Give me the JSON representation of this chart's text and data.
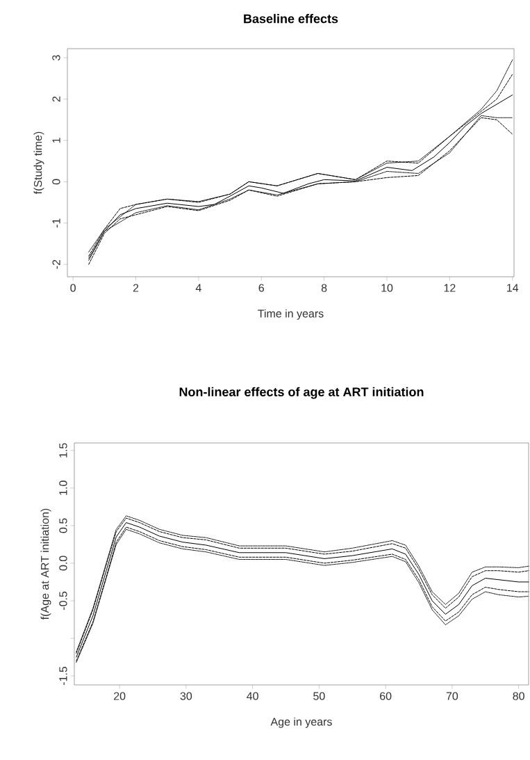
{
  "chart_data": [
    {
      "type": "line",
      "title": "Baseline effects",
      "xlabel": "Time in years",
      "ylabel": "f(Study time)",
      "xlim": [
        -0.18,
        14.05
      ],
      "ylim": [
        -2.3,
        3.22
      ],
      "xticks": [
        0,
        2,
        4,
        6,
        8,
        10,
        12,
        14
      ],
      "yticks": [
        -2,
        -1,
        0,
        1,
        2,
        3
      ],
      "marker": "none",
      "series": [
        {
          "color": "#000000",
          "line_style": "solid",
          "x": [
            0.5,
            1,
            1.5,
            2,
            3,
            4,
            4.5,
            5,
            5.6,
            6,
            6.7,
            7.5,
            8,
            9,
            10,
            10.8,
            11.5,
            12,
            12.5,
            13,
            14
          ],
          "values": [
            -1.9,
            -1.2,
            -0.8,
            -0.65,
            -0.52,
            -0.6,
            -0.55,
            -0.35,
            -0.1,
            -0.15,
            -0.28,
            -0.05,
            0.05,
            0.02,
            0.35,
            0.27,
            0.6,
            0.95,
            1.35,
            1.65,
            2.1
          ]
        },
        {
          "color": "#000000",
          "line_style": "dashed",
          "x": [
            0.5,
            1,
            1.5,
            2,
            3,
            4,
            5,
            5.6,
            6.5,
            7.8,
            9,
            10,
            11,
            12,
            13,
            13.5,
            14
          ],
          "values": [
            -1.8,
            -1.15,
            -0.65,
            -0.55,
            -0.42,
            -0.5,
            -0.3,
            0.0,
            -0.1,
            0.2,
            0.05,
            0.5,
            0.45,
            1.1,
            1.7,
            2.0,
            2.6
          ]
        },
        {
          "color": "#000000",
          "line_style": "dashed",
          "x": [
            0.5,
            1,
            1.5,
            2,
            3,
            4,
            5,
            5.6,
            6.5,
            7.8,
            9,
            10,
            11,
            12,
            13,
            13.5,
            14
          ],
          "values": [
            -2.0,
            -1.25,
            -0.9,
            -0.8,
            -0.6,
            -0.7,
            -0.45,
            -0.2,
            -0.35,
            -0.05,
            0.0,
            0.1,
            0.15,
            0.75,
            1.55,
            1.5,
            1.15
          ]
        },
        {
          "color": "#000000",
          "line_style": "dotted",
          "x": [
            0.5,
            1,
            2,
            3,
            4,
            5,
            5.6,
            6.5,
            7.8,
            9,
            10,
            11,
            12,
            13,
            13.5,
            14
          ],
          "values": [
            -1.7,
            -1.15,
            -0.55,
            -0.42,
            -0.48,
            -0.3,
            0.0,
            -0.1,
            0.2,
            0.05,
            0.45,
            0.5,
            1.1,
            1.75,
            2.2,
            2.95
          ]
        },
        {
          "color": "#000000",
          "line_style": "dotted",
          "x": [
            0.5,
            1,
            2,
            3,
            4,
            5,
            5.6,
            6.5,
            7.8,
            9,
            10,
            11,
            12,
            13,
            13.5,
            14
          ],
          "values": [
            -1.85,
            -1.2,
            -0.75,
            -0.58,
            -0.68,
            -0.42,
            -0.2,
            -0.32,
            -0.05,
            0.0,
            0.25,
            0.2,
            0.7,
            1.6,
            1.55,
            1.55
          ]
        }
      ]
    },
    {
      "type": "line",
      "title": "Non-linear effects of age at ART initiation",
      "xlabel": "Age in years",
      "ylabel": "f(Age at ART initiation)",
      "xlim": [
        13.2,
        81.5
      ],
      "ylim": [
        -1.62,
        1.6
      ],
      "xticks": [
        20,
        30,
        40,
        50,
        60,
        70,
        80
      ],
      "yticks": [
        -1.5,
        {
          "value": -1,
          "label": null
        },
        -0.5,
        {
          "value": 0,
          "label": "0.0"
        },
        0.5,
        {
          "value": 1,
          "label": "1.0"
        },
        1.5
      ],
      "marker": "none",
      "series": [
        {
          "color": "#000000",
          "line_style": "solid",
          "x": [
            13.5,
            16,
            18,
            19.5,
            21,
            23,
            26,
            29.5,
            33,
            38,
            45,
            50.8,
            55,
            61,
            63,
            65,
            67,
            69,
            71,
            73,
            75,
            77,
            80,
            81.5
          ],
          "values": [
            -1.25,
            -0.7,
            -0.1,
            0.35,
            0.54,
            0.48,
            0.36,
            0.28,
            0.24,
            0.14,
            0.14,
            0.06,
            0.1,
            0.19,
            0.12,
            -0.15,
            -0.5,
            -0.68,
            -0.55,
            -0.3,
            -0.2,
            -0.22,
            -0.25,
            -0.25
          ]
        },
        {
          "color": "#000000",
          "line_style": "dashed",
          "x": [
            13.5,
            16,
            18,
            19.5,
            21,
            23,
            26,
            29.5,
            33,
            38,
            45,
            50.8,
            55,
            61,
            63,
            65,
            67,
            69,
            71,
            73,
            75,
            77,
            80,
            81.5
          ],
          "values": [
            -1.2,
            -0.62,
            -0.02,
            0.42,
            0.6,
            0.54,
            0.42,
            0.34,
            0.31,
            0.2,
            0.2,
            0.12,
            0.16,
            0.26,
            0.2,
            -0.08,
            -0.42,
            -0.6,
            -0.45,
            -0.18,
            -0.1,
            -0.1,
            -0.12,
            -0.1
          ]
        },
        {
          "color": "#000000",
          "line_style": "dashed",
          "x": [
            13.5,
            16,
            18,
            19.5,
            21,
            23,
            26,
            29.5,
            33,
            38,
            45,
            50.8,
            55,
            61,
            63,
            65,
            67,
            69,
            71,
            73,
            75,
            77,
            80,
            81.5
          ],
          "values": [
            -1.3,
            -0.78,
            -0.18,
            0.28,
            0.48,
            0.42,
            0.3,
            0.22,
            0.18,
            0.08,
            0.08,
            0.0,
            0.04,
            0.12,
            0.05,
            -0.22,
            -0.58,
            -0.77,
            -0.65,
            -0.42,
            -0.32,
            -0.35,
            -0.38,
            -0.38
          ]
        },
        {
          "color": "#000000",
          "line_style": "dotted",
          "x": [
            13.5,
            16,
            18,
            19.5,
            21,
            23,
            26,
            29.5,
            33,
            38,
            45,
            50.8,
            55,
            61,
            63,
            65,
            67,
            69,
            71,
            73,
            75,
            77,
            80,
            81.5
          ],
          "values": [
            -1.18,
            -0.6,
            0.0,
            0.45,
            0.63,
            0.57,
            0.45,
            0.37,
            0.34,
            0.23,
            0.23,
            0.15,
            0.2,
            0.3,
            0.24,
            -0.04,
            -0.38,
            -0.55,
            -0.4,
            -0.12,
            -0.05,
            -0.05,
            -0.06,
            -0.04
          ]
        },
        {
          "color": "#000000",
          "line_style": "dotted",
          "x": [
            13.5,
            16,
            18,
            19.5,
            21,
            23,
            26,
            29.5,
            33,
            38,
            45,
            50.8,
            55,
            61,
            63,
            65,
            67,
            69,
            71,
            73,
            75,
            77,
            80,
            81.5
          ],
          "values": [
            -1.32,
            -0.8,
            -0.2,
            0.25,
            0.45,
            0.39,
            0.27,
            0.19,
            0.15,
            0.05,
            0.05,
            -0.03,
            0.01,
            0.09,
            0.02,
            -0.26,
            -0.62,
            -0.82,
            -0.7,
            -0.48,
            -0.38,
            -0.42,
            -0.45,
            -0.44
          ]
        }
      ]
    }
  ]
}
